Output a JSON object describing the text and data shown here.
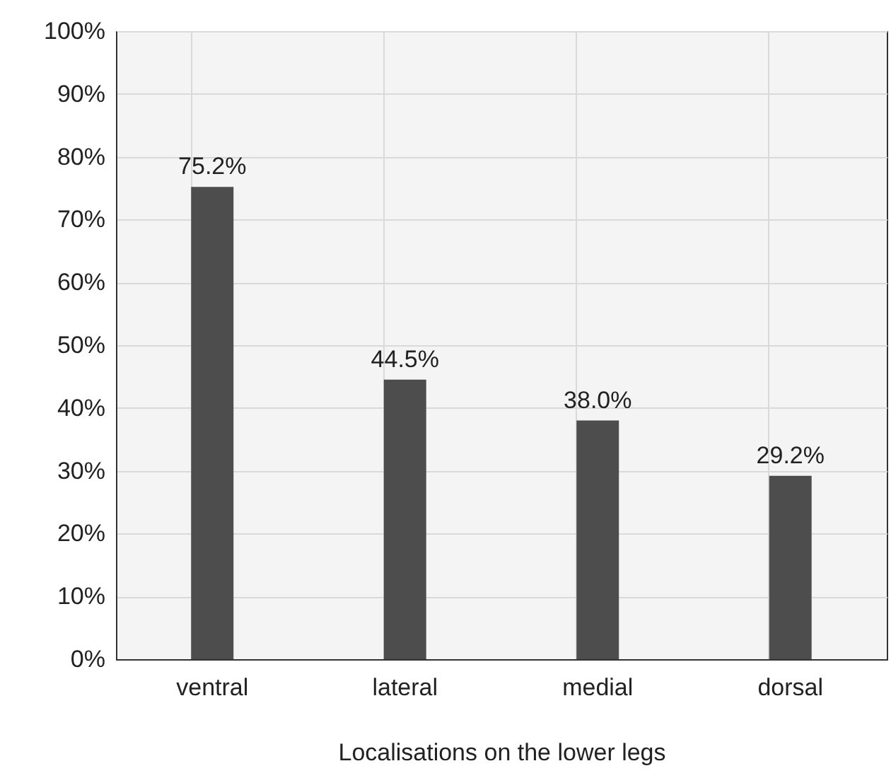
{
  "chart_data": {
    "type": "bar",
    "xlabel": "Localisations on the lower legs",
    "categories": [
      "ventral",
      "lateral",
      "medial",
      "dorsal"
    ],
    "values": [
      75.2,
      44.5,
      38.0,
      29.2
    ],
    "value_labels": [
      "75.2%",
      "44.5%",
      "38.0%",
      "29.2%"
    ],
    "color": "#4d4d4d",
    "ylim": [
      0,
      100
    ],
    "yticks": [
      {
        "value": 0,
        "label": "0%"
      },
      {
        "value": 10,
        "label": "10%"
      },
      {
        "value": 20,
        "label": "20%"
      },
      {
        "value": 30,
        "label": "30%"
      },
      {
        "value": 40,
        "label": "40%"
      },
      {
        "value": 50,
        "label": "50%"
      },
      {
        "value": 60,
        "label": "60%"
      },
      {
        "value": 70,
        "label": "70%"
      },
      {
        "value": 80,
        "label": "80%"
      },
      {
        "value": 90,
        "label": "90%"
      },
      {
        "value": 100,
        "label": "100%"
      }
    ],
    "grid": true
  }
}
